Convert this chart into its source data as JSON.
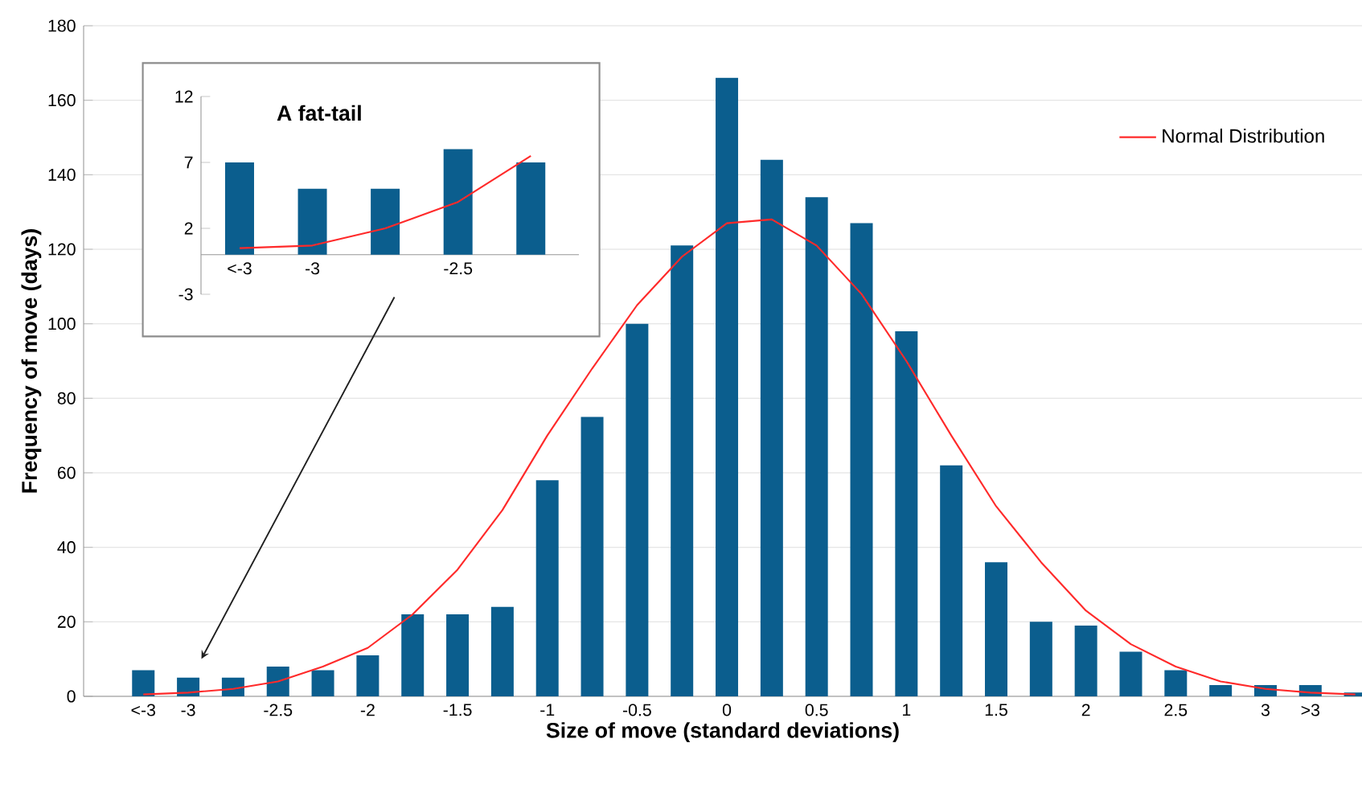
{
  "chart_data": [
    {
      "type": "bar",
      "xlabel": "Size of move (standard deviations)",
      "ylabel": "Frequency of move (days)",
      "categories": [
        "<-3",
        "-3",
        null,
        "-2.5",
        null,
        "-2",
        null,
        "-1.5",
        null,
        "-1",
        null,
        "-0.5",
        null,
        "0",
        null,
        "0.5",
        null,
        "1",
        null,
        "1.5",
        null,
        "2",
        null,
        "2.5",
        null,
        "3",
        ">3",
        null
      ],
      "series": [
        {
          "color": "#0b5e8e",
          "values": [
            7,
            5,
            5,
            8,
            7,
            11,
            22,
            22,
            24,
            58,
            75,
            100,
            121,
            166,
            144,
            134,
            127,
            98,
            62,
            36,
            20,
            19,
            12,
            7,
            3,
            3,
            3,
            1
          ]
        },
        {
          "type": "line",
          "name": "Normal Distribution",
          "color": "#ff2a2a",
          "values": [
            0.5,
            1,
            2,
            4,
            8,
            13,
            22,
            34,
            50,
            70,
            88,
            105,
            118,
            127,
            128,
            121,
            108,
            90,
            70,
            51,
            36,
            23,
            14,
            8,
            4,
            2,
            1,
            0.5
          ]
        }
      ],
      "ylim": [
        0,
        180
      ],
      "yticks": [
        0,
        20,
        40,
        60,
        80,
        100,
        120,
        140,
        160,
        180
      ],
      "grid": "y",
      "legend": "top right"
    },
    {
      "type": "bar",
      "title": "A fat-tail",
      "categories": [
        "<-3",
        "-3",
        null,
        "-2.5",
        null
      ],
      "series": [
        {
          "color": "#0b5e8e",
          "values": [
            7,
            5,
            5,
            8,
            7
          ]
        },
        {
          "type": "line",
          "color": "#ff2a2a",
          "values": [
            0.5,
            0.7,
            2,
            4,
            7.5
          ]
        }
      ],
      "ylim": [
        -3,
        12
      ],
      "yticks": [
        -3,
        2,
        7,
        12
      ]
    }
  ]
}
